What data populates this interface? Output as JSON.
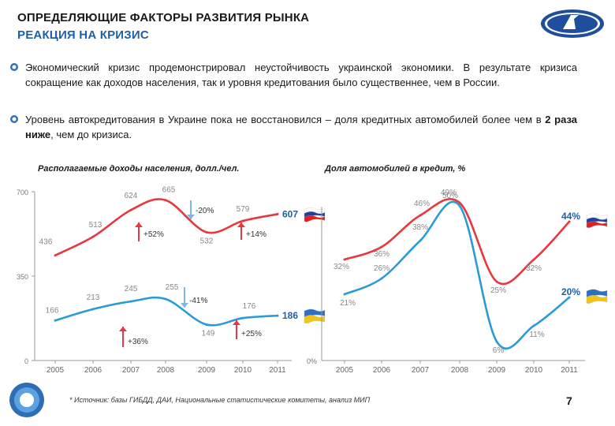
{
  "header": {
    "title_line1": "ОПРЕДЕЛЯЮЩИЕ ФАКТОРЫ РАЗВИТИЯ РЫНКА",
    "title_line2": "РЕАКЦИЯ НА КРИЗИС"
  },
  "bullets": [
    "Экономический кризис продемонстрировал неустойчивость украинской экономики. В результате кризиса сокращение как доходов населения, так и уровня кредитования было существеннее, чем в России.",
    {
      "pre": "Уровень автокредитования в Украине пока не восстановился – доля кредитных автомобилей более чем в ",
      "bold": "2 раза ниже",
      "post": ", чем до кризиса."
    }
  ],
  "colors": {
    "russia": "#e8383d",
    "ukraine": "#2b9bd6",
    "accent": "#1f5fa8"
  },
  "chart_data": [
    {
      "type": "line",
      "title": "Располагаемые доходы населения, долл./чел.",
      "categories": [
        "2005",
        "2006",
        "2007",
        "2008",
        "2009",
        "2010",
        "2011"
      ],
      "y_tick_labels": [
        "700",
        "350",
        "0"
      ],
      "series": [
        {
          "name": "Россия",
          "color": "#e8383d",
          "values": [
            436,
            513,
            624,
            665,
            532,
            579,
            607
          ],
          "labels": [
            "436",
            "513",
            "624",
            "665",
            "532",
            "579",
            ""
          ],
          "end_label": "607"
        },
        {
          "name": "Украина",
          "color": "#2b9bd6",
          "values": [
            166,
            213,
            245,
            255,
            149,
            176,
            186
          ],
          "labels": [
            "166",
            "213",
            "245",
            "255",
            "149",
            "176",
            ""
          ],
          "end_label": "186"
        }
      ],
      "annotations": {
        "up_left_top": "+52%",
        "down_top": "-20%",
        "up_right_top": "+14%",
        "up_left_bottom": "+36%",
        "down_bottom": "-41%",
        "up_right_bottom": "+25%"
      }
    },
    {
      "type": "line",
      "title": "Доля автомобилей в кредит, %",
      "categories": [
        "2005",
        "2006",
        "2007",
        "2008",
        "2009",
        "2010",
        "2011"
      ],
      "y_tick_labels": [
        "0%"
      ],
      "series": [
        {
          "name": "Россия",
          "color": "#e8383d",
          "values": [
            32,
            36,
            46,
            50,
            25,
            32,
            44
          ],
          "labels": [
            "32%",
            "36%",
            "46%",
            "50%",
            "25%",
            "32%",
            ""
          ],
          "end_label": "44%"
        },
        {
          "name": "Украина",
          "color": "#2b9bd6",
          "values": [
            21,
            26,
            38,
            49,
            6,
            11,
            20
          ],
          "labels": [
            "21%",
            "26%",
            "38%",
            "49%",
            "6%",
            "11%",
            ""
          ],
          "end_label": "20%"
        }
      ]
    }
  ],
  "footer": {
    "source": "* Источник: базы ГИБДД, ДАИ, Национальные статистические комитеты, анализ МИП",
    "page": "7"
  }
}
